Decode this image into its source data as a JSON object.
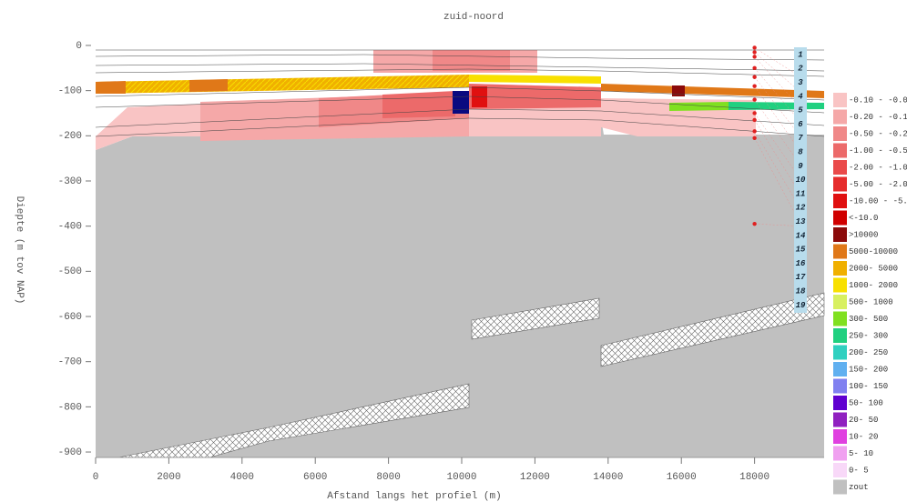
{
  "chart_data": {
    "type": "cross-section",
    "title": "zuid-noord",
    "xlabel": "Afstand langs het profiel (m)",
    "ylabel": "Diepte (m tov NAP)",
    "xlim": [
      0,
      19900
    ],
    "ylim": [
      -912,
      10
    ],
    "xticks": [
      0,
      2000,
      4000,
      6000,
      8000,
      10000,
      12000,
      14000,
      16000,
      18000
    ],
    "yticks": [
      0,
      -100,
      -200,
      -300,
      -400,
      -500,
      -600,
      -700,
      -800,
      -900
    ],
    "grid": true,
    "points": {
      "color": "#e02020",
      "x": [
        18000,
        18000,
        18000,
        18000,
        18000,
        18000,
        18000,
        18000,
        18000,
        18000,
        18000,
        18000
      ],
      "y": [
        -5,
        -15,
        -25,
        -50,
        -70,
        -90,
        -120,
        -150,
        -165,
        -190,
        -205,
        -395
      ]
    },
    "layer_labels": [
      "1",
      "2",
      "3",
      "4",
      "5",
      "6",
      "7",
      "8",
      "9",
      "10",
      "11",
      "12",
      "13",
      "14",
      "15",
      "16",
      "17",
      "18",
      "19"
    ],
    "legend": [
      {
        "label": "-0.10 - -0.05",
        "color": "#f9c4c4"
      },
      {
        "label": "-0.20 - -0.10",
        "color": "#f5a8a8"
      },
      {
        "label": "-0.50 - -0.20",
        "color": "#f08888"
      },
      {
        "label": "-1.00 - -0.50",
        "color": "#ec6a6a"
      },
      {
        "label": "-2.00 - -1.00",
        "color": "#ea4a4a"
      },
      {
        "label": "-5.00 - -2.00",
        "color": "#e62c2c"
      },
      {
        "label": "-10.00 - -5.00",
        "color": "#e01010"
      },
      {
        "label": "<-10.0",
        "color": "#d00000"
      },
      {
        "label": ">10000",
        "color": "#8b0a0a"
      },
      {
        "label": "5000-10000",
        "color": "#e07818"
      },
      {
        "label": "2000- 5000",
        "color": "#f0b000"
      },
      {
        "label": "1000- 2000",
        "color": "#f8e000"
      },
      {
        "label": "500- 1000",
        "color": "#d8f060"
      },
      {
        "label": "300- 500",
        "color": "#80e020"
      },
      {
        "label": "250- 300",
        "color": "#20d080"
      },
      {
        "label": "200- 250",
        "color": "#30d0c0"
      },
      {
        "label": "150- 200",
        "color": "#60b0f0"
      },
      {
        "label": "100- 150",
        "color": "#8080f0"
      },
      {
        "label": "50- 100",
        "color": "#6000d0"
      },
      {
        "label": "20- 50",
        "color": "#9020c0"
      },
      {
        "label": "10- 20",
        "color": "#e040e0"
      },
      {
        "label": "5- 10",
        "color": "#f0a0f0"
      },
      {
        "label": "0- 5",
        "color": "#f8d8f8"
      },
      {
        "label": "zout",
        "color": "#c0c0c0"
      }
    ]
  }
}
